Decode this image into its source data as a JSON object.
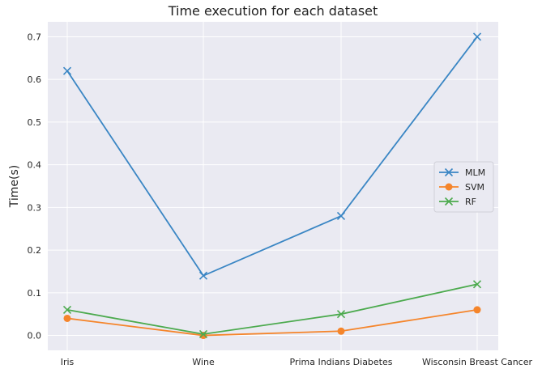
{
  "chart_data": {
    "type": "line",
    "title": "Time execution for each dataset",
    "xlabel": "",
    "ylabel": "Time(s)",
    "categories": [
      "Iris",
      "Wine",
      "Prima Indians Diabetes",
      "Wisconsin Breast Cancer"
    ],
    "ylim": [
      -0.035,
      0.735
    ],
    "yticks": [
      0.0,
      0.1,
      0.2,
      0.3,
      0.4,
      0.5,
      0.6,
      0.7
    ],
    "grid": true,
    "legend_position": "center-right",
    "series": [
      {
        "name": "MLM",
        "marker": "x",
        "color": "#3a86c4",
        "values": [
          0.62,
          0.14,
          0.28,
          0.7
        ]
      },
      {
        "name": "SVM",
        "marker": "o",
        "color": "#f5852b",
        "values": [
          0.04,
          0.0,
          0.01,
          0.06
        ]
      },
      {
        "name": "RF",
        "marker": "x",
        "color": "#4caa4e",
        "values": [
          0.06,
          0.003,
          0.05,
          0.12
        ]
      }
    ],
    "colors": {
      "plot_background": "#eaeaf2",
      "grid": "#ffffff"
    }
  }
}
